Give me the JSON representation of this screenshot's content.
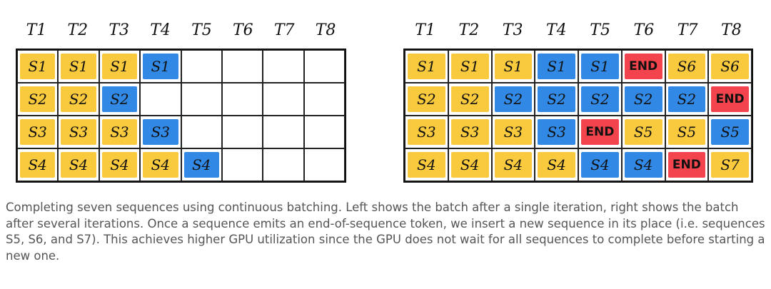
{
  "colors": {
    "prefill": "#f8c62c",
    "generate": "#1f7fe3",
    "end": "#f2333d"
  },
  "headers": [
    "T1",
    "T2",
    "T3",
    "T4",
    "T5",
    "T6",
    "T7",
    "T8"
  ],
  "left": {
    "rows": [
      [
        {
          "t": "S1",
          "c": "prefill"
        },
        {
          "t": "S1",
          "c": "prefill"
        },
        {
          "t": "S1",
          "c": "prefill"
        },
        {
          "t": "S1",
          "c": "generate"
        },
        null,
        null,
        null,
        null
      ],
      [
        {
          "t": "S2",
          "c": "prefill"
        },
        {
          "t": "S2",
          "c": "prefill"
        },
        {
          "t": "S2",
          "c": "generate"
        },
        null,
        null,
        null,
        null,
        null
      ],
      [
        {
          "t": "S3",
          "c": "prefill"
        },
        {
          "t": "S3",
          "c": "prefill"
        },
        {
          "t": "S3",
          "c": "prefill"
        },
        {
          "t": "S3",
          "c": "generate"
        },
        null,
        null,
        null,
        null
      ],
      [
        {
          "t": "S4",
          "c": "prefill"
        },
        {
          "t": "S4",
          "c": "prefill"
        },
        {
          "t": "S4",
          "c": "prefill"
        },
        {
          "t": "S4",
          "c": "prefill"
        },
        {
          "t": "S4",
          "c": "generate"
        },
        null,
        null,
        null
      ]
    ]
  },
  "right": {
    "rows": [
      [
        {
          "t": "S1",
          "c": "prefill"
        },
        {
          "t": "S1",
          "c": "prefill"
        },
        {
          "t": "S1",
          "c": "prefill"
        },
        {
          "t": "S1",
          "c": "generate"
        },
        {
          "t": "S1",
          "c": "generate"
        },
        {
          "t": "END",
          "c": "end"
        },
        {
          "t": "S6",
          "c": "prefill"
        },
        {
          "t": "S6",
          "c": "prefill"
        }
      ],
      [
        {
          "t": "S2",
          "c": "prefill"
        },
        {
          "t": "S2",
          "c": "prefill"
        },
        {
          "t": "S2",
          "c": "generate"
        },
        {
          "t": "S2",
          "c": "generate"
        },
        {
          "t": "S2",
          "c": "generate"
        },
        {
          "t": "S2",
          "c": "generate"
        },
        {
          "t": "S2",
          "c": "generate"
        },
        {
          "t": "END",
          "c": "end"
        }
      ],
      [
        {
          "t": "S3",
          "c": "prefill"
        },
        {
          "t": "S3",
          "c": "prefill"
        },
        {
          "t": "S3",
          "c": "prefill"
        },
        {
          "t": "S3",
          "c": "generate"
        },
        {
          "t": "END",
          "c": "end"
        },
        {
          "t": "S5",
          "c": "prefill"
        },
        {
          "t": "S5",
          "c": "prefill"
        },
        {
          "t": "S5",
          "c": "generate"
        }
      ],
      [
        {
          "t": "S4",
          "c": "prefill"
        },
        {
          "t": "S4",
          "c": "prefill"
        },
        {
          "t": "S4",
          "c": "prefill"
        },
        {
          "t": "S4",
          "c": "prefill"
        },
        {
          "t": "S4",
          "c": "generate"
        },
        {
          "t": "S4",
          "c": "generate"
        },
        {
          "t": "END",
          "c": "end"
        },
        {
          "t": "S7",
          "c": "prefill"
        }
      ]
    ]
  },
  "caption": "Completing seven sequences using continuous batching. Left shows the batch after a single iteration, right shows the batch after several iterations. Once a sequence emits an end-of-sequence token, we insert a new sequence in its place (i.e. sequences S5, S6, and S7). This achieves higher GPU utilization since the GPU does not wait for all sequences to complete before starting a new one."
}
